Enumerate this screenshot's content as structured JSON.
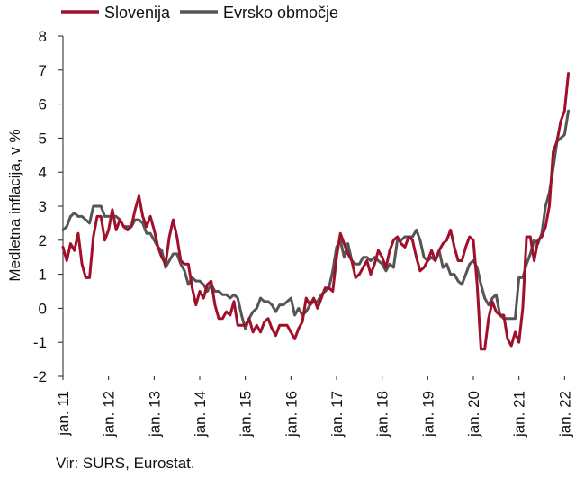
{
  "chart_data": {
    "type": "line",
    "ylabel": "Medletna inflacija, v %",
    "ylim": [
      -2,
      8
    ],
    "yticks": [
      -2,
      -1,
      0,
      1,
      2,
      3,
      4,
      5,
      6,
      7,
      8
    ],
    "x_tick_labels": [
      "jan. 11",
      "jan. 12",
      "jan. 13",
      "jan. 14",
      "jan. 15",
      "jan. 16",
      "jan. 17",
      "jan. 18",
      "jan. 19",
      "jan. 20",
      "jan. 21",
      "jan. 22"
    ],
    "x_start": "2011-01",
    "x_end": "2022-04",
    "grid": false,
    "legend_position": "top-left",
    "series": [
      {
        "name": "Slovenija",
        "color": "#a0102a",
        "values": [
          1.8,
          1.4,
          1.9,
          1.7,
          2.2,
          1.3,
          0.9,
          0.9,
          2.1,
          2.7,
          2.7,
          2.0,
          2.3,
          2.9,
          2.3,
          2.6,
          2.4,
          2.3,
          2.4,
          2.9,
          3.3,
          2.7,
          2.4,
          2.7,
          2.3,
          1.8,
          1.5,
          1.3,
          2.1,
          2.6,
          2.1,
          1.4,
          1.3,
          1.3,
          0.6,
          0.1,
          0.5,
          0.3,
          0.7,
          0.8,
          0.1,
          -0.3,
          -0.3,
          -0.1,
          -0.2,
          0.2,
          -0.5,
          -0.5,
          -0.5,
          -0.3,
          -0.7,
          -0.5,
          -0.7,
          -0.4,
          -0.3,
          -0.6,
          -0.8,
          -0.5,
          -0.5,
          -0.5,
          -0.7,
          -0.9,
          -0.6,
          -0.4,
          0.3,
          0.1,
          0.3,
          0.0,
          0.3,
          0.6,
          0.6,
          0.5,
          1.5,
          2.2,
          1.9,
          1.6,
          1.4,
          0.9,
          1.0,
          1.2,
          1.4,
          1.0,
          1.3,
          1.7,
          1.5,
          1.2,
          1.7,
          2.0,
          2.1,
          1.9,
          1.8,
          2.1,
          2.0,
          1.5,
          1.1,
          1.2,
          1.4,
          1.7,
          1.4,
          1.7,
          1.9,
          2.0,
          2.3,
          1.8,
          1.4,
          1.4,
          1.8,
          2.1,
          2.0,
          0.7,
          -1.2,
          -1.2,
          -0.3,
          0.2,
          -0.1,
          -0.2,
          -0.2,
          -0.9,
          -1.1,
          -0.7,
          -1.0,
          0.0,
          2.1,
          2.1,
          1.4,
          2.0,
          2.1,
          2.4,
          3.0,
          4.6,
          4.9,
          5.5,
          5.8,
          6.9
        ]
      },
      {
        "name": "Evrsko območje",
        "color": "#555555",
        "values": [
          2.3,
          2.4,
          2.7,
          2.8,
          2.7,
          2.7,
          2.6,
          2.5,
          3.0,
          3.0,
          3.0,
          2.7,
          2.7,
          2.7,
          2.7,
          2.6,
          2.4,
          2.4,
          2.4,
          2.6,
          2.6,
          2.5,
          2.2,
          2.2,
          2.0,
          1.8,
          1.7,
          1.2,
          1.4,
          1.6,
          1.6,
          1.3,
          1.1,
          0.7,
          0.9,
          0.8,
          0.8,
          0.7,
          0.5,
          0.7,
          0.5,
          0.5,
          0.4,
          0.4,
          0.3,
          0.4,
          0.3,
          -0.2,
          -0.6,
          -0.3,
          -0.1,
          0.0,
          0.3,
          0.2,
          0.2,
          0.1,
          -0.1,
          0.1,
          0.1,
          0.2,
          0.3,
          -0.2,
          0.0,
          -0.2,
          -0.1,
          0.1,
          0.2,
          0.2,
          0.4,
          0.5,
          0.6,
          1.1,
          1.8,
          2.0,
          1.5,
          1.9,
          1.4,
          1.3,
          1.3,
          1.5,
          1.5,
          1.4,
          1.5,
          1.4,
          1.3,
          1.1,
          1.3,
          1.2,
          2.0,
          2.0,
          2.1,
          2.1,
          2.1,
          2.3,
          2.0,
          1.5,
          1.4,
          1.5,
          1.4,
          1.7,
          1.2,
          1.3,
          1.0,
          1.0,
          0.8,
          0.7,
          1.0,
          1.3,
          1.4,
          1.2,
          0.7,
          0.3,
          0.1,
          0.3,
          0.4,
          -0.2,
          -0.3,
          -0.3,
          -0.3,
          -0.3,
          0.9,
          0.9,
          1.3,
          1.6,
          2.0,
          1.9,
          2.2,
          3.0,
          3.4,
          4.1,
          4.9,
          5.0,
          5.1,
          5.8
        ]
      }
    ]
  },
  "source": "Vir: SURS, Eurostat."
}
